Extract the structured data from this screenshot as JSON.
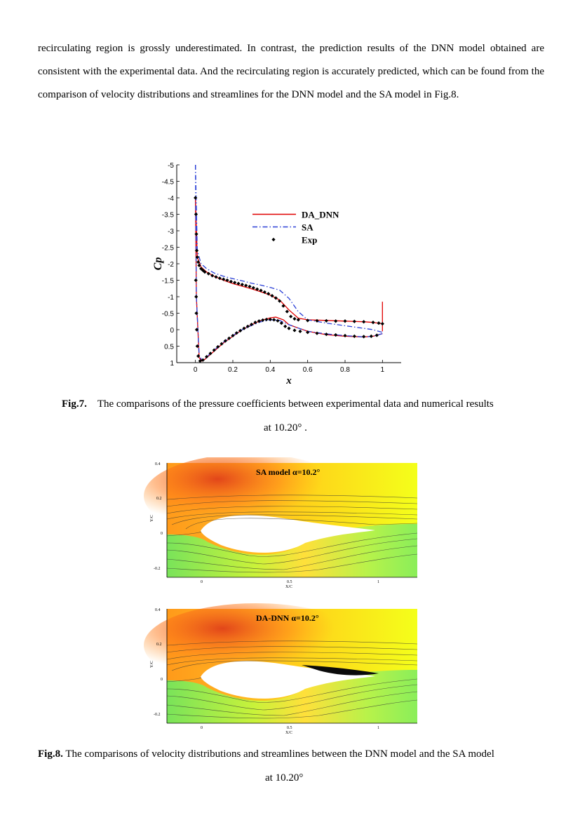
{
  "paragraph": "recirculating region is grossly underestimated. In contrast, the prediction results of the DNN model obtained are consistent with the experimental data. And the recirculating region is accurately predicted, which can be found from the comparison of velocity distributions and streamlines for the DNN model and the SA model in Fig.8.",
  "fig7": {
    "label": "Fig.7.",
    "caption_line1": "The comparisons of the pressure coefficients between experimental data and numerical results",
    "caption_line2": "at 10.20°  ."
  },
  "fig8": {
    "label": "Fig.8.",
    "caption_line1": "The comparisons of velocity distributions and streamlines between the DNN model and the SA model",
    "caption_line2": "at 10.20°",
    "top_panel": {
      "title": "SA model  α=10.2°",
      "yticks": [
        "0.4",
        "0.2",
        "0",
        "-0.2"
      ],
      "xticks": [
        "0",
        "0.5",
        "1"
      ],
      "xlabel": "X/C",
      "ylabel": "Y/C"
    },
    "bottom_panel": {
      "title": "DA-DNN  α=10.2°",
      "yticks": [
        "0.4",
        "0.2",
        "0",
        "-0.2"
      ],
      "xticks": [
        "0",
        "0.5",
        "1"
      ],
      "xlabel": "X/C",
      "ylabel": "Y/C"
    }
  },
  "chart_data": {
    "type": "line",
    "xlabel": "x",
    "ylabel": "Cp",
    "xlim": [
      -0.1,
      1.1
    ],
    "ylim": [
      -5,
      1
    ],
    "y_inverted": true,
    "xticks": [
      "0",
      "0.2",
      "0.4",
      "0.6",
      "0.8",
      "1"
    ],
    "yticks": [
      "-5",
      "-4.5",
      "-4",
      "-3.5",
      "-3",
      "-2.5",
      "-2",
      "-1.5",
      "-1",
      "-0.5",
      "0",
      "0.5",
      "1"
    ],
    "legend_position": "top-right",
    "series": [
      {
        "name": "DA_DNN",
        "color": "#e00000",
        "style": "solid",
        "upper": [
          [
            0,
            -4
          ],
          [
            0.01,
            -2.2
          ],
          [
            0.03,
            -1.9
          ],
          [
            0.06,
            -1.75
          ],
          [
            0.1,
            -1.62
          ],
          [
            0.15,
            -1.5
          ],
          [
            0.2,
            -1.4
          ],
          [
            0.25,
            -1.32
          ],
          [
            0.3,
            -1.24
          ],
          [
            0.35,
            -1.15
          ],
          [
            0.4,
            -1.05
          ],
          [
            0.45,
            -0.9
          ],
          [
            0.5,
            -0.6
          ],
          [
            0.55,
            -0.35
          ],
          [
            0.6,
            -0.3
          ],
          [
            0.7,
            -0.28
          ],
          [
            0.8,
            -0.26
          ],
          [
            0.9,
            -0.24
          ],
          [
            0.95,
            -0.22
          ],
          [
            1.0,
            -0.18
          ]
        ],
        "lower": [
          [
            0,
            -4
          ],
          [
            0.005,
            -1
          ],
          [
            0.02,
            0.85
          ],
          [
            0.035,
            0.95
          ],
          [
            0.05,
            0.9
          ],
          [
            0.1,
            0.65
          ],
          [
            0.15,
            0.4
          ],
          [
            0.2,
            0.2
          ],
          [
            0.25,
            0
          ],
          [
            0.3,
            -0.15
          ],
          [
            0.35,
            -0.28
          ],
          [
            0.4,
            -0.36
          ],
          [
            0.43,
            -0.38
          ],
          [
            0.47,
            -0.3
          ],
          [
            0.5,
            -0.15
          ],
          [
            0.55,
            -0.05
          ],
          [
            0.6,
            0.05
          ],
          [
            0.7,
            0.15
          ],
          [
            0.8,
            0.2
          ],
          [
            0.9,
            0.22
          ],
          [
            0.95,
            0.2
          ],
          [
            1.0,
            0.12
          ]
        ],
        "trailing_edge_spike": [
          [
            1.0,
            0.05
          ],
          [
            1.0,
            -0.85
          ]
        ]
      },
      {
        "name": "SA",
        "color": "#2a3fd6",
        "style": "dash-dot",
        "upper": [
          [
            0,
            -5
          ],
          [
            0.01,
            -2.4
          ],
          [
            0.03,
            -2.0
          ],
          [
            0.06,
            -1.85
          ],
          [
            0.1,
            -1.72
          ],
          [
            0.15,
            -1.62
          ],
          [
            0.2,
            -1.55
          ],
          [
            0.25,
            -1.48
          ],
          [
            0.3,
            -1.41
          ],
          [
            0.35,
            -1.35
          ],
          [
            0.4,
            -1.28
          ],
          [
            0.45,
            -1.2
          ],
          [
            0.5,
            -0.95
          ],
          [
            0.55,
            -0.55
          ],
          [
            0.6,
            -0.3
          ],
          [
            0.7,
            -0.2
          ],
          [
            0.8,
            -0.12
          ],
          [
            0.9,
            -0.04
          ],
          [
            0.95,
            0
          ],
          [
            1.0,
            0.08
          ]
        ],
        "lower": [
          [
            0,
            -5
          ],
          [
            0.005,
            -1
          ],
          [
            0.02,
            0.8
          ],
          [
            0.035,
            0.92
          ],
          [
            0.05,
            0.88
          ],
          [
            0.1,
            0.62
          ],
          [
            0.15,
            0.38
          ],
          [
            0.2,
            0.18
          ],
          [
            0.25,
            0
          ],
          [
            0.3,
            -0.13
          ],
          [
            0.35,
            -0.24
          ],
          [
            0.4,
            -0.3
          ],
          [
            0.45,
            -0.28
          ],
          [
            0.5,
            -0.15
          ],
          [
            0.55,
            -0.05
          ],
          [
            0.6,
            0.05
          ],
          [
            0.7,
            0.13
          ],
          [
            0.8,
            0.18
          ],
          [
            0.9,
            0.22
          ],
          [
            0.95,
            0.2
          ],
          [
            1.0,
            0.12
          ]
        ]
      },
      {
        "name": "Exp",
        "color": "#000000",
        "style": "diamond",
        "points": [
          [
            0,
            -4
          ],
          [
            0.003,
            -3.5
          ],
          [
            0.005,
            -2.9
          ],
          [
            0.007,
            -2.4
          ],
          [
            0.01,
            -2.2
          ],
          [
            0.015,
            -2.05
          ],
          [
            0.02,
            -1.95
          ],
          [
            0.03,
            -1.85
          ],
          [
            0.04,
            -1.8
          ],
          [
            0.05,
            -1.75
          ],
          [
            0.07,
            -1.7
          ],
          [
            0.09,
            -1.64
          ],
          [
            0.11,
            -1.6
          ],
          [
            0.13,
            -1.56
          ],
          [
            0.15,
            -1.53
          ],
          [
            0.17,
            -1.5
          ],
          [
            0.19,
            -1.46
          ],
          [
            0.21,
            -1.43
          ],
          [
            0.23,
            -1.4
          ],
          [
            0.25,
            -1.37
          ],
          [
            0.27,
            -1.34
          ],
          [
            0.29,
            -1.31
          ],
          [
            0.31,
            -1.27
          ],
          [
            0.33,
            -1.23
          ],
          [
            0.35,
            -1.19
          ],
          [
            0.37,
            -1.14
          ],
          [
            0.39,
            -1.09
          ],
          [
            0.41,
            -1.03
          ],
          [
            0.43,
            -0.96
          ],
          [
            0.45,
            -0.87
          ],
          [
            0.47,
            -0.72
          ],
          [
            0.49,
            -0.55
          ],
          [
            0.51,
            -0.4
          ],
          [
            0.53,
            -0.33
          ],
          [
            0.55,
            -0.3
          ],
          [
            0.6,
            -0.28
          ],
          [
            0.65,
            -0.27
          ],
          [
            0.7,
            -0.27
          ],
          [
            0.75,
            -0.26
          ],
          [
            0.8,
            -0.26
          ],
          [
            0.85,
            -0.25
          ],
          [
            0.9,
            -0.24
          ],
          [
            0.95,
            -0.22
          ],
          [
            0.98,
            -0.2
          ],
          [
            1.0,
            -0.18
          ],
          [
            0.002,
            -1.5
          ],
          [
            0.004,
            -1.0
          ],
          [
            0.005,
            -0.5
          ],
          [
            0.007,
            0
          ],
          [
            0.01,
            0.5
          ],
          [
            0.015,
            0.8
          ],
          [
            0.025,
            0.95
          ],
          [
            0.04,
            0.92
          ],
          [
            0.06,
            0.82
          ],
          [
            0.08,
            0.72
          ],
          [
            0.1,
            0.62
          ],
          [
            0.12,
            0.52
          ],
          [
            0.14,
            0.43
          ],
          [
            0.16,
            0.34
          ],
          [
            0.18,
            0.26
          ],
          [
            0.2,
            0.18
          ],
          [
            0.22,
            0.1
          ],
          [
            0.24,
            0.03
          ],
          [
            0.26,
            -0.04
          ],
          [
            0.28,
            -0.1
          ],
          [
            0.3,
            -0.16
          ],
          [
            0.32,
            -0.22
          ],
          [
            0.34,
            -0.26
          ],
          [
            0.36,
            -0.29
          ],
          [
            0.38,
            -0.31
          ],
          [
            0.4,
            -0.31
          ],
          [
            0.42,
            -0.3
          ],
          [
            0.44,
            -0.27
          ],
          [
            0.46,
            -0.2
          ],
          [
            0.48,
            -0.1
          ],
          [
            0.5,
            -0.04
          ],
          [
            0.53,
            0.02
          ],
          [
            0.56,
            0.05
          ],
          [
            0.6,
            0.08
          ],
          [
            0.65,
            0.11
          ],
          [
            0.7,
            0.14
          ],
          [
            0.75,
            0.16
          ],
          [
            0.8,
            0.18
          ],
          [
            0.85,
            0.2
          ],
          [
            0.9,
            0.21
          ],
          [
            0.94,
            0.2
          ],
          [
            0.97,
            0.17
          ]
        ]
      }
    ]
  }
}
